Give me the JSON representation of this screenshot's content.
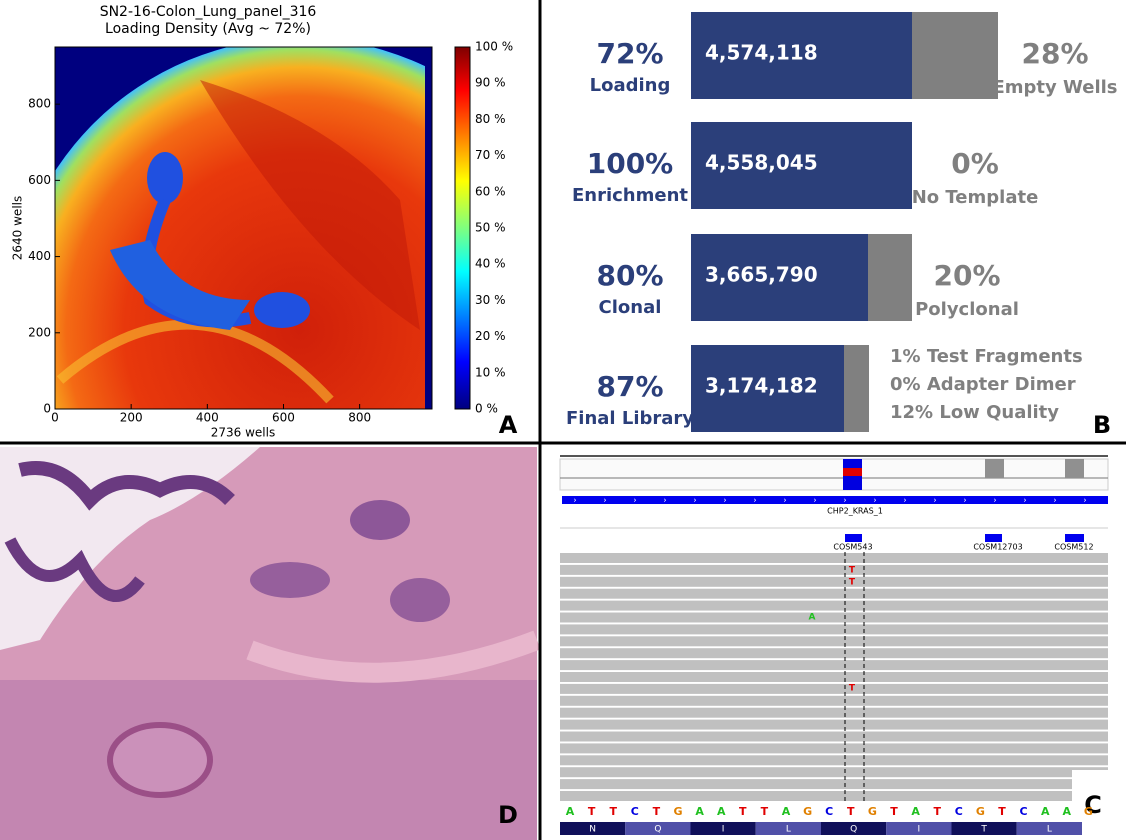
{
  "panel_a": {
    "title": "SN2-16-Colon_Lung_panel_316",
    "subtitle": "Loading Density (Avg ~ 72%)",
    "xlabel": "2736 wells",
    "ylabel": "2640 wells",
    "xlim": [
      0,
      990
    ],
    "ylim": [
      0,
      950
    ],
    "xticks": [
      0,
      200,
      400,
      600,
      800
    ],
    "yticks": [
      0,
      200,
      400,
      600,
      800
    ],
    "colorbar_ticks": [
      "0 %",
      "10 %",
      "20 %",
      "30 %",
      "40 %",
      "50 %",
      "60 %",
      "70 %",
      "80 %",
      "90 %",
      "100 %"
    ],
    "letter": "A"
  },
  "panel_b": {
    "rows": [
      {
        "percent": "72%",
        "label": "Loading",
        "count": "4,574,118",
        "other_percent": "28%",
        "other_label": "Empty Wells"
      },
      {
        "percent": "100%",
        "label": "Enrichment",
        "count": "4,558,045",
        "other_percent": "0%",
        "other_label": "No Template"
      },
      {
        "percent": "80%",
        "label": "Clonal",
        "count": "3,665,790",
        "other_percent": "20%",
        "other_label": "Polyclonal"
      },
      {
        "percent": "87%",
        "label": "Final Library",
        "count": "3,174,182"
      }
    ],
    "notes": [
      "1% Test Fragments",
      "0% Adapter Dimer",
      "12% Low Quality"
    ],
    "letter": "B"
  },
  "panel_c": {
    "track": "CHP2_KRAS_1",
    "features": [
      "COSM543",
      "COSM12703",
      "COSM512"
    ],
    "read_bases": [
      "T",
      "T",
      "A",
      "T"
    ],
    "sequence": [
      "A",
      "T",
      "T",
      "C",
      "T",
      "G",
      "A",
      "A",
      "T",
      "T",
      "A",
      "G",
      "C",
      "T",
      "G",
      "T",
      "A",
      "T",
      "C",
      "G",
      "T",
      "C",
      "A",
      "A",
      "G"
    ],
    "amino_acids": [
      "N",
      "Q",
      "I",
      "L",
      "Q",
      "I",
      "T",
      "L"
    ],
    "letter": "C"
  },
  "panel_d": {
    "letter": "D"
  }
}
